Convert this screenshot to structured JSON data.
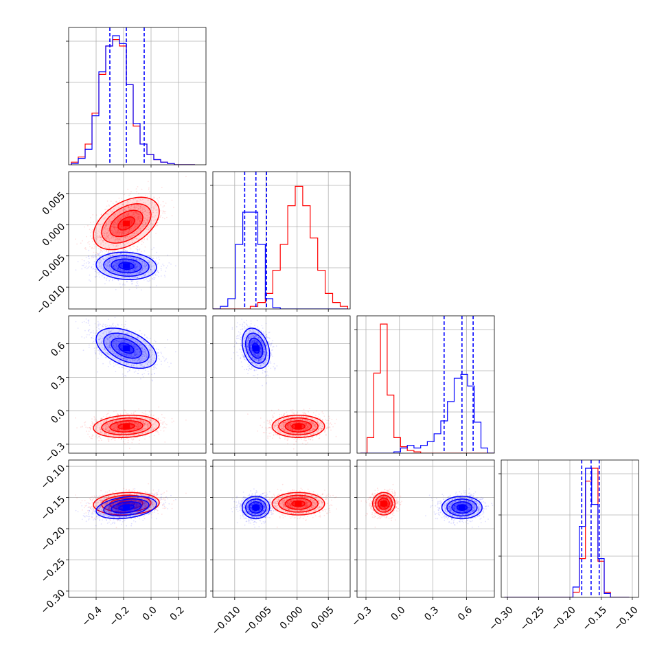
{
  "chart_data": {
    "type": "corner",
    "grid": true,
    "colors": {
      "series_a": "#ff0000",
      "series_b": "#0000ff"
    },
    "axis_ranges": [
      [
        -0.6,
        0.4
      ],
      [
        -0.0135,
        0.0085
      ],
      [
        -0.38,
        0.85
      ],
      [
        -0.31,
        -0.09
      ]
    ],
    "tick_labels": [
      [
        "-0.4",
        "-0.2",
        "0.0",
        "0.2"
      ],
      [
        "-0.010",
        "-0.005",
        "0.000",
        "0.005"
      ],
      [
        "-0.3",
        "0.0",
        "0.3",
        "0.6"
      ],
      [
        "-0.30",
        "-0.25",
        "-0.20",
        "-0.15",
        "-0.10"
      ]
    ],
    "tick_values": [
      [
        -0.4,
        -0.2,
        0.0,
        0.2
      ],
      [
        -0.01,
        -0.005,
        0.0,
        0.005
      ],
      [
        -0.3,
        0.0,
        0.3,
        0.6
      ],
      [
        -0.3,
        -0.25,
        -0.2,
        -0.15,
        -0.1
      ]
    ],
    "y_tick_labels": [
      null,
      [
        "0.005",
        "0.000",
        "-0.005",
        "-0.010"
      ],
      [
        "0.6",
        "0.3",
        "0.0",
        "-0.3"
      ],
      [
        "-0.10",
        "-0.15",
        "-0.20",
        "-0.25",
        "-0.30"
      ]
    ],
    "y_tick_values": [
      null,
      [
        0.005,
        0.0,
        -0.005,
        -0.01
      ],
      [
        0.6,
        0.3,
        0.0,
        -0.3
      ],
      [
        -0.1,
        -0.15,
        -0.2,
        -0.25,
        -0.3
      ]
    ],
    "quantiles_b": [
      [
        -0.3,
        -0.18,
        -0.05
      ],
      [
        -0.0084,
        -0.0066,
        -0.0049
      ],
      [
        0.4,
        0.56,
        0.66
      ],
      [
        -0.181,
        -0.166,
        -0.153
      ]
    ],
    "series": [
      {
        "key": "a",
        "means": [
          -0.18,
          0.0002,
          -0.14,
          -0.16
        ],
        "sds": [
          0.12,
          0.0021,
          0.05,
          0.009
        ],
        "corr": {
          "0-1": 0.45,
          "0-2": 0.15,
          "0-3": 0.1,
          "1-2": 0.0,
          "1-3": 0.0,
          "2-3": 0.0
        },
        "hist_edges": [
          [
            -0.58,
            -0.53,
            -0.48,
            -0.43,
            -0.38,
            -0.33,
            -0.28,
            -0.23,
            -0.18,
            -0.13,
            -0.08,
            -0.03,
            0.02,
            0.07,
            0.12,
            0.17,
            0.22,
            0.27,
            0.32
          ],
          [
            -0.0135,
            -0.0123,
            -0.0111,
            -0.0099,
            -0.0087,
            -0.0075,
            -0.0063,
            -0.0051,
            -0.0039,
            -0.0027,
            -0.0015,
            -0.0003,
            0.0009,
            0.0021,
            0.0033,
            0.0045,
            0.0057,
            0.0069,
            0.0081
          ],
          [
            -0.35,
            -0.29,
            -0.23,
            -0.17,
            -0.11,
            -0.05,
            0.01,
            0.07,
            0.13,
            0.19,
            0.25,
            0.31,
            0.37,
            0.43,
            0.49,
            0.55,
            0.61,
            0.67,
            0.73,
            0.79,
            0.85
          ],
          [
            -0.305,
            -0.295,
            -0.285,
            -0.275,
            -0.265,
            -0.255,
            -0.245,
            -0.235,
            -0.225,
            -0.215,
            -0.205,
            -0.195,
            -0.185,
            -0.175,
            -0.165,
            -0.155,
            -0.145,
            -0.135,
            -0.125,
            -0.115,
            -0.105
          ]
        ],
        "hist_counts": [
          [
            2,
            6,
            16,
            40,
            70,
            92,
            97,
            92,
            62,
            30,
            16,
            8,
            4,
            2,
            1,
            0,
            0,
            0
          ],
          [
            0,
            0,
            0,
            0,
            0,
            2,
            5,
            12,
            30,
            50,
            80,
            95,
            80,
            55,
            30,
            12,
            5,
            2
          ],
          [
            0,
            12,
            62,
            100,
            45,
            12,
            5,
            2,
            1,
            0,
            0,
            0,
            0,
            0,
            0,
            0,
            0,
            0,
            0,
            0
          ],
          [
            0,
            0,
            0,
            0,
            0,
            0,
            0,
            0,
            0,
            0,
            0,
            4,
            30,
            90,
            100,
            28,
            4,
            0,
            0,
            0
          ]
        ]
      },
      {
        "key": "b",
        "means": [
          -0.18,
          -0.0066,
          0.56,
          -0.166
        ],
        "sds": [
          0.11,
          0.0011,
          0.09,
          0.009
        ],
        "corr": {
          "0-1": -0.1,
          "0-2": -0.45,
          "0-3": 0.3,
          "1-2": -0.3,
          "1-3": 0.0,
          "2-3": 0.0
        },
        "hist_edges": [
          [
            -0.58,
            -0.53,
            -0.48,
            -0.43,
            -0.38,
            -0.33,
            -0.28,
            -0.23,
            -0.18,
            -0.13,
            -0.08,
            -0.03,
            0.02,
            0.07,
            0.12,
            0.17,
            0.22,
            0.27,
            0.32
          ],
          [
            -0.0135,
            -0.0123,
            -0.0111,
            -0.0099,
            -0.0087,
            -0.0075,
            -0.0063,
            -0.0051,
            -0.0039,
            -0.0027,
            -0.0015,
            -0.0003,
            0.0009,
            0.0021,
            0.0033,
            0.0045,
            0.0057,
            0.0069,
            0.0081
          ],
          [
            -0.35,
            -0.29,
            -0.23,
            -0.17,
            -0.11,
            -0.05,
            0.01,
            0.07,
            0.13,
            0.19,
            0.25,
            0.31,
            0.37,
            0.43,
            0.49,
            0.55,
            0.61,
            0.67,
            0.73,
            0.79,
            0.85
          ],
          [
            -0.305,
            -0.295,
            -0.285,
            -0.275,
            -0.265,
            -0.255,
            -0.245,
            -0.235,
            -0.225,
            -0.215,
            -0.205,
            -0.195,
            -0.185,
            -0.175,
            -0.165,
            -0.155,
            -0.145,
            -0.135,
            -0.125,
            -0.115,
            -0.105
          ]
        ],
        "hist_counts": [
          [
            1,
            5,
            12,
            38,
            72,
            92,
            100,
            94,
            62,
            32,
            16,
            8,
            4,
            2,
            1,
            0,
            0,
            0
          ],
          [
            0,
            2,
            8,
            50,
            75,
            75,
            50,
            8,
            1,
            0,
            0,
            0,
            0,
            0,
            0,
            0,
            0,
            0
          ],
          [
            0,
            0,
            0,
            0,
            0,
            1,
            4,
            6,
            4,
            6,
            9,
            15,
            25,
            40,
            58,
            61,
            52,
            24,
            4,
            0
          ],
          [
            0,
            0,
            0,
            0,
            0,
            0,
            0,
            0,
            0,
            0,
            0,
            8,
            55,
            100,
            72,
            30,
            3,
            0,
            0,
            0
          ]
        ]
      }
    ]
  }
}
